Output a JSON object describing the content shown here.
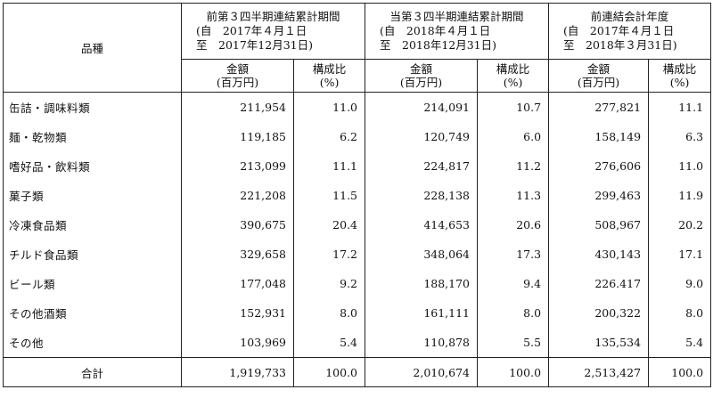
{
  "header": {
    "category_label": "品種",
    "periods": [
      {
        "title": "前第３四半期連結累計期間",
        "line1": "(自　2017年４月１日",
        "line2": "至　2017年12月31日)"
      },
      {
        "title": "当第３四半期連結累計期間",
        "line1": "(自　2018年４月１日",
        "line2": "至　2018年12月31日)"
      },
      {
        "title": "前連結会計年度",
        "line1": "(自　2017年４月１日",
        "line2": "至　2018年３月31日)"
      }
    ],
    "amount_line1": "金額",
    "amount_line2": "(百万円)",
    "ratio_line1": "構成比",
    "ratio_line2": "(%)"
  },
  "rows": [
    {
      "category": "缶詰・調味料類",
      "v": [
        "211,954",
        "11.0",
        "214,091",
        "10.7",
        "277,821",
        "11.1"
      ]
    },
    {
      "category": "麺・乾物類",
      "v": [
        "119,185",
        "6.2",
        "120,749",
        "6.0",
        "158,149",
        "6.3"
      ]
    },
    {
      "category": "嗜好品・飲料類",
      "v": [
        "213,099",
        "11.1",
        "224,817",
        "11.2",
        "276,606",
        "11.0"
      ]
    },
    {
      "category": "菓子類",
      "v": [
        "221,208",
        "11.5",
        "228,138",
        "11.3",
        "299,463",
        "11.9"
      ]
    },
    {
      "category": "冷凍食品類",
      "v": [
        "390,675",
        "20.4",
        "414,653",
        "20.6",
        "508,967",
        "20.2"
      ]
    },
    {
      "category": "チルド食品類",
      "v": [
        "329,658",
        "17.2",
        "348,064",
        "17.3",
        "430,143",
        "17.1"
      ]
    },
    {
      "category": "ビール類",
      "v": [
        "177,048",
        "9.2",
        "188,170",
        "9.4",
        "226.417",
        "9.0"
      ]
    },
    {
      "category": "その他酒類",
      "v": [
        "152,931",
        "8.0",
        "161,111",
        "8.0",
        "200,322",
        "8.0"
      ]
    },
    {
      "category": "その他",
      "v": [
        "103,969",
        "5.4",
        "110,878",
        "5.5",
        "135,534",
        "5.4"
      ]
    }
  ],
  "total": {
    "label": "合計",
    "v": [
      "1,919,733",
      "100.0",
      "2,010,674",
      "100.0",
      "2,513,427",
      "100.0"
    ]
  }
}
